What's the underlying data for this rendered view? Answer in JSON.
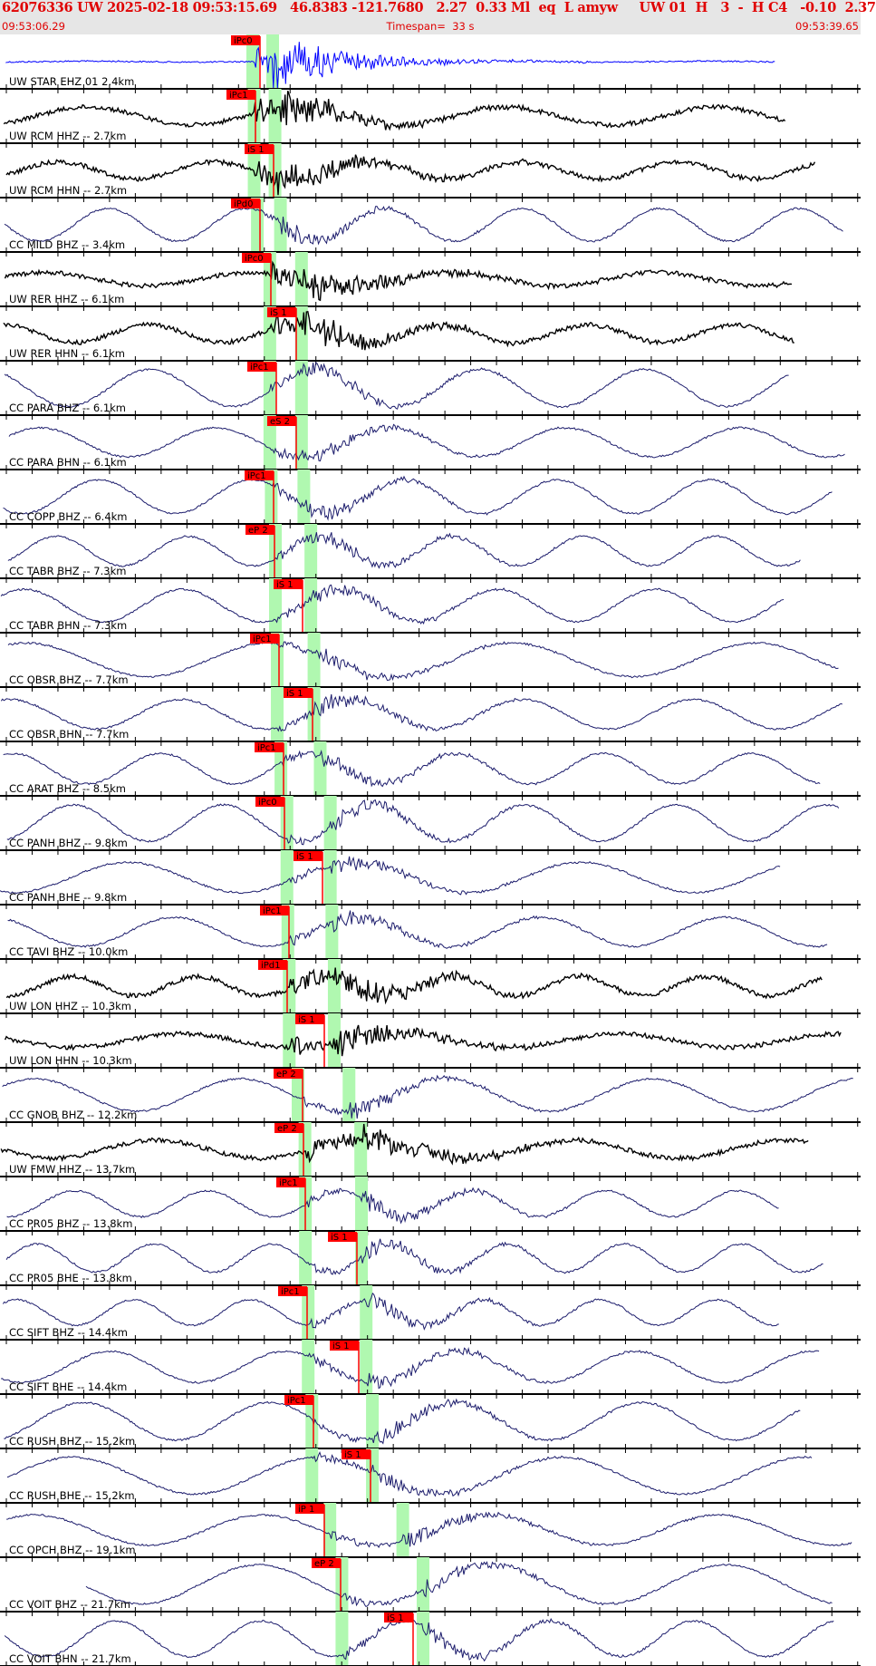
{
  "header": {
    "event_line": "62076336 UW 2025-02-18 09:53:15.69   46.8383 -121.7680   2.27  0.33 Ml  eq  L amyw     UW 01  H   3  -  H C4   -0.10  2.37",
    "start_time": "09:53:06.29",
    "timespan": "Timespan=  33 s",
    "end_time": "09:53:39.65"
  },
  "chart_data": {
    "type": "line",
    "title": "",
    "x_range_seconds": 33,
    "colors": {
      "short_period": "#0000ff",
      "broadband_uw": "#000000",
      "broadband_cc": "#1c1c6c",
      "pick": "#ff0000",
      "window": "#b0f8b0"
    },
    "traces": [
      {
        "label": "UW STAR EHZ 01  2.4km",
        "pick": "iPc0"
      },
      {
        "label": "UW RCM HHZ -- 2.7km",
        "pick": "iPc1"
      },
      {
        "label": "UW RCM HHN -- 2.7km",
        "pick": "iS 1"
      },
      {
        "label": "CC MILD BHZ -- 3.4km",
        "pick": "iPd0"
      },
      {
        "label": "UW RER HHZ -- 6.1km",
        "pick": "iPc0"
      },
      {
        "label": "UW RER HHN -- 6.1km",
        "pick": "iS 1"
      },
      {
        "label": "CC PARA BHZ -- 6.1km",
        "pick": "iPc1"
      },
      {
        "label": "CC PARA BHN -- 6.1km",
        "pick": "eS 2"
      },
      {
        "label": "CC COPP BHZ -- 6.4km",
        "pick": "iPc1"
      },
      {
        "label": "CC TABR BHZ -- 7.3km",
        "pick": "eP 2"
      },
      {
        "label": "CC TABR BHN -- 7.3km",
        "pick": "iS 1"
      },
      {
        "label": "CC OBSR BHZ -- 7.7km",
        "pick": "iPc1"
      },
      {
        "label": "CC OBSR BHN -- 7.7km",
        "pick": "iS 1"
      },
      {
        "label": "CC ARAT BHZ -- 8.5km",
        "pick": "iPc1"
      },
      {
        "label": "CC PANH BHZ -- 9.8km",
        "pick": "iPc0"
      },
      {
        "label": "CC PANH BHE -- 9.8km",
        "pick": "iS 1"
      },
      {
        "label": "CC TAVI BHZ -- 10.0km",
        "pick": "iPc1"
      },
      {
        "label": "UW LON HHZ -- 10.3km",
        "pick": "iPd1"
      },
      {
        "label": "UW LON HHN -- 10.3km",
        "pick": "iS 1"
      },
      {
        "label": "CC GNOB BHZ -- 12.2km",
        "pick": "eP 2"
      },
      {
        "label": "UW FMW HHZ -- 13.7km",
        "pick": "eP 2"
      },
      {
        "label": "CC PR05 BHZ -- 13.8km",
        "pick": "iPc1"
      },
      {
        "label": "CC PR05 BHE -- 13.8km",
        "pick": "iS 1"
      },
      {
        "label": "CC SIFT BHZ -- 14.4km",
        "pick": "iPc1"
      },
      {
        "label": "CC SIFT BHE -- 14.4km",
        "pick": "iS 1"
      },
      {
        "label": "CC RUSH BHZ -- 15.2km",
        "pick": "iPc1"
      },
      {
        "label": "CC RUSH BHE -- 15.2km",
        "pick": "iS 1"
      },
      {
        "label": "CC OPCH BHZ -- 19.1km",
        "pick": "iP 1"
      },
      {
        "label": "CC VOIT BHZ -- 21.7km",
        "pick": "eP 2"
      },
      {
        "label": "CC VOIT BHN -- 21.7km",
        "pick": "iS 1"
      }
    ]
  }
}
